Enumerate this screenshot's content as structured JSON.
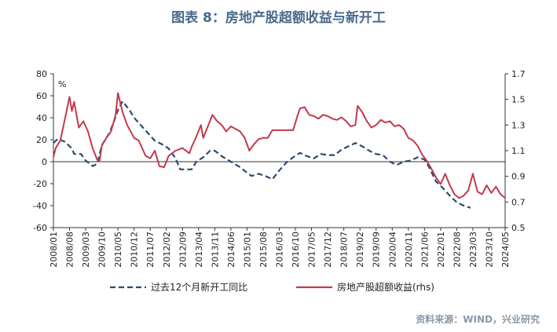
{
  "header": {
    "title": "图表 8：房地产股超额收益与新开工"
  },
  "footer": {
    "source": "资料来源：WIND，兴业研究"
  },
  "chart_data": {
    "type": "line",
    "title": "图表 8：房地产股超额收益与新开工",
    "y_unit": "%",
    "ylim_left": [
      -60,
      80
    ],
    "yticks_left": [
      "80",
      "60",
      "40",
      "20",
      "0",
      "-20",
      "-40",
      "-60"
    ],
    "ylim_right": [
      0.5,
      1.7
    ],
    "yticks_right": [
      "1.7",
      "1.5",
      "1.3",
      "1.1",
      "0.9",
      "0.7",
      "0.5"
    ],
    "grid": false,
    "legend_position": "bottom",
    "xticks": [
      "2008/01",
      "2008/08",
      "2009/03",
      "2009/10",
      "2010/05",
      "2010/12",
      "2011/07",
      "2012/02",
      "2012/09",
      "2013/04",
      "2013/11",
      "2014/06",
      "2015/01",
      "2015/08",
      "2016/03",
      "2016/10",
      "2017/05",
      "2017/12",
      "2018/07",
      "2019/02",
      "2019/09",
      "2020/04",
      "2020/11",
      "2021/06",
      "2022/01",
      "2022/08",
      "2023/03",
      "2023/10",
      "2024/05"
    ],
    "series": [
      {
        "name": "过去12个月新开工同比",
        "axis": "left",
        "color": "#2d4a6e",
        "style": "dashed",
        "points": [
          [
            "2008/01",
            17
          ],
          [
            "2008/03",
            21
          ],
          [
            "2008/06",
            18
          ],
          [
            "2008/09",
            12
          ],
          [
            "2008/10",
            7
          ],
          [
            "2009/01",
            7
          ],
          [
            "2009/03",
            1
          ],
          [
            "2009/06",
            -4
          ],
          [
            "2009/08",
            -2
          ],
          [
            "2009/10",
            15
          ],
          [
            "2010/01",
            25
          ],
          [
            "2010/03",
            35
          ],
          [
            "2010/05",
            47
          ],
          [
            "2010/07",
            55
          ],
          [
            "2010/10",
            47
          ],
          [
            "2010/12",
            40
          ],
          [
            "2011/03",
            33
          ],
          [
            "2011/06",
            26
          ],
          [
            "2011/09",
            19
          ],
          [
            "2011/12",
            16
          ],
          [
            "2012/03",
            12
          ],
          [
            "2012/06",
            3
          ],
          [
            "2012/08",
            -7
          ],
          [
            "2012/10",
            -7
          ],
          [
            "2013/01",
            -7
          ],
          [
            "2013/03",
            0
          ],
          [
            "2013/06",
            4
          ],
          [
            "2013/09",
            10
          ],
          [
            "2013/11",
            10
          ],
          [
            "2014/02",
            5
          ],
          [
            "2014/06",
            0
          ],
          [
            "2014/10",
            -5
          ],
          [
            "2015/01",
            -10
          ],
          [
            "2015/03",
            -13
          ],
          [
            "2015/06",
            -11
          ],
          [
            "2015/09",
            -13
          ],
          [
            "2015/12",
            -16
          ],
          [
            "2016/03",
            -8
          ],
          [
            "2016/06",
            -1
          ],
          [
            "2016/09",
            4
          ],
          [
            "2016/12",
            8
          ],
          [
            "2017/03",
            5
          ],
          [
            "2017/06",
            3
          ],
          [
            "2017/09",
            7
          ],
          [
            "2017/12",
            6
          ],
          [
            "2018/03",
            6
          ],
          [
            "2018/06",
            11
          ],
          [
            "2018/09",
            14
          ],
          [
            "2018/12",
            17
          ],
          [
            "2019/03",
            14
          ],
          [
            "2019/06",
            10
          ],
          [
            "2019/09",
            7
          ],
          [
            "2019/12",
            6
          ],
          [
            "2020/03",
            0
          ],
          [
            "2020/06",
            -3
          ],
          [
            "2020/09",
            0
          ],
          [
            "2020/12",
            1
          ],
          [
            "2021/03",
            4
          ],
          [
            "2021/06",
            2
          ],
          [
            "2021/08",
            -5
          ],
          [
            "2021/11",
            -18
          ],
          [
            "2022/02",
            -24
          ],
          [
            "2022/05",
            -31
          ],
          [
            "2022/08",
            -37
          ],
          [
            "2022/11",
            -40
          ],
          [
            "2023/02",
            -42
          ]
        ]
      },
      {
        "name": "房地产股超额收益(rhs)",
        "axis": "right",
        "color": "#c23a4b",
        "style": "solid",
        "points": [
          [
            "2008/01",
            1.05
          ],
          [
            "2008/02",
            1.12
          ],
          [
            "2008/04",
            1.18
          ],
          [
            "2008/06",
            1.35
          ],
          [
            "2008/08",
            1.52
          ],
          [
            "2008/09",
            1.41
          ],
          [
            "2008/10",
            1.48
          ],
          [
            "2008/12",
            1.28
          ],
          [
            "2009/02",
            1.33
          ],
          [
            "2009/04",
            1.25
          ],
          [
            "2009/06",
            1.12
          ],
          [
            "2009/08",
            1.03
          ],
          [
            "2009/09",
            1.02
          ],
          [
            "2009/10",
            1.14
          ],
          [
            "2009/12",
            1.2
          ],
          [
            "2010/02",
            1.25
          ],
          [
            "2010/04",
            1.38
          ],
          [
            "2010/05",
            1.55
          ],
          [
            "2010/07",
            1.4
          ],
          [
            "2010/09",
            1.3
          ],
          [
            "2010/12",
            1.2
          ],
          [
            "2011/02",
            1.18
          ],
          [
            "2011/05",
            1.06
          ],
          [
            "2011/07",
            1.04
          ],
          [
            "2011/09",
            1.1
          ],
          [
            "2011/11",
            0.98
          ],
          [
            "2012/01",
            0.97
          ],
          [
            "2012/03",
            1.06
          ],
          [
            "2012/06",
            1.1
          ],
          [
            "2012/09",
            1.12
          ],
          [
            "2012/12",
            1.08
          ],
          [
            "2013/01",
            1.13
          ],
          [
            "2013/03",
            1.21
          ],
          [
            "2013/05",
            1.3
          ],
          [
            "2013/06",
            1.2
          ],
          [
            "2013/08",
            1.29
          ],
          [
            "2013/10",
            1.38
          ],
          [
            "2013/12",
            1.33
          ],
          [
            "2014/02",
            1.3
          ],
          [
            "2014/04",
            1.25
          ],
          [
            "2014/06",
            1.29
          ],
          [
            "2014/08",
            1.27
          ],
          [
            "2014/10",
            1.25
          ],
          [
            "2014/12",
            1.2
          ],
          [
            "2015/02",
            1.1
          ],
          [
            "2015/04",
            1.15
          ],
          [
            "2015/06",
            1.19
          ],
          [
            "2015/08",
            1.2
          ],
          [
            "2015/10",
            1.2
          ],
          [
            "2015/12",
            1.26
          ],
          [
            "2016/03",
            1.26
          ],
          [
            "2016/06",
            1.26
          ],
          [
            "2016/09",
            1.26
          ],
          [
            "2016/11",
            1.38
          ],
          [
            "2016/12",
            1.43
          ],
          [
            "2017/02",
            1.44
          ],
          [
            "2017/04",
            1.38
          ],
          [
            "2017/06",
            1.37
          ],
          [
            "2017/08",
            1.35
          ],
          [
            "2017/10",
            1.38
          ],
          [
            "2017/12",
            1.37
          ],
          [
            "2018/02",
            1.35
          ],
          [
            "2018/04",
            1.34
          ],
          [
            "2018/06",
            1.36
          ],
          [
            "2018/08",
            1.33
          ],
          [
            "2018/10",
            1.29
          ],
          [
            "2018/12",
            1.3
          ],
          [
            "2019/01",
            1.45
          ],
          [
            "2019/03",
            1.4
          ],
          [
            "2019/05",
            1.33
          ],
          [
            "2019/07",
            1.28
          ],
          [
            "2019/09",
            1.3
          ],
          [
            "2019/11",
            1.34
          ],
          [
            "2020/01",
            1.32
          ],
          [
            "2020/03",
            1.33
          ],
          [
            "2020/05",
            1.29
          ],
          [
            "2020/07",
            1.3
          ],
          [
            "2020/09",
            1.27
          ],
          [
            "2020/11",
            1.2
          ],
          [
            "2021/01",
            1.18
          ],
          [
            "2021/03",
            1.14
          ],
          [
            "2021/05",
            1.07
          ],
          [
            "2021/07",
            1.02
          ],
          [
            "2021/09",
            0.96
          ],
          [
            "2021/11",
            0.89
          ],
          [
            "2022/01",
            0.84
          ],
          [
            "2022/03",
            0.92
          ],
          [
            "2022/05",
            0.83
          ],
          [
            "2022/07",
            0.76
          ],
          [
            "2022/09",
            0.73
          ],
          [
            "2022/11",
            0.75
          ],
          [
            "2023/01",
            0.79
          ],
          [
            "2023/03",
            0.92
          ],
          [
            "2023/05",
            0.78
          ],
          [
            "2023/07",
            0.76
          ],
          [
            "2023/09",
            0.83
          ],
          [
            "2023/11",
            0.77
          ],
          [
            "2024/01",
            0.82
          ],
          [
            "2024/03",
            0.76
          ],
          [
            "2024/05",
            0.73
          ]
        ]
      }
    ]
  }
}
